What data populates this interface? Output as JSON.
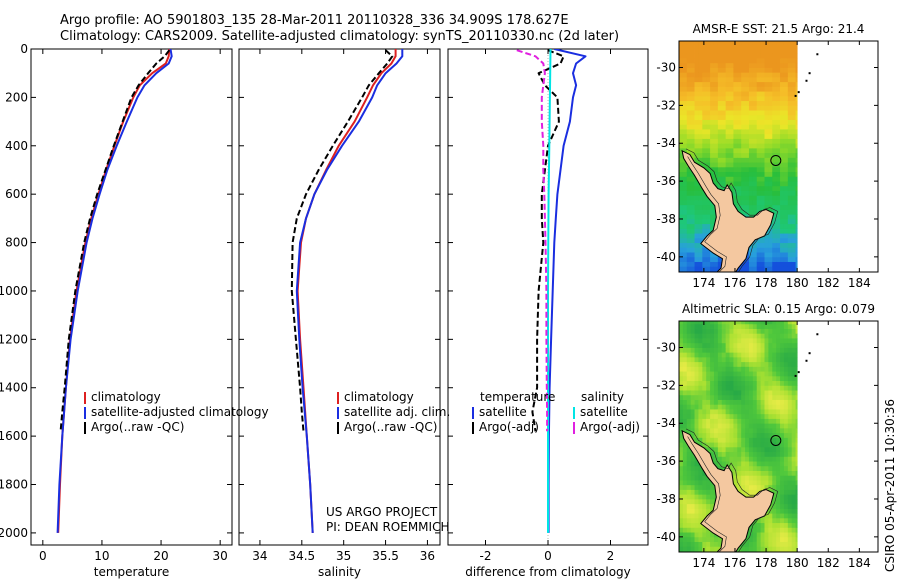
{
  "header": {
    "title_line1": "Argo profile: AO 5901803_135 28-Mar-2011 20110328_336 34.909S 178.627E",
    "title_line2": "Climatology: CARS2009. Satellite-adjusted climatology: synTS_20110330.nc (2d later)"
  },
  "credit": {
    "project": "US ARGO PROJECT",
    "pi": "PI: DEAN ROEMMICH",
    "stamp": "CSIRO 05-Apr-2011 10:30:36"
  },
  "colors": {
    "climatology": "#dd2020",
    "satellite": "#1a2ee0",
    "argo": "#000000",
    "sat_diff": "#00e5e5",
    "argo_adj": "#e020e0",
    "land": "#f4c8a0"
  },
  "chart_data": [
    {
      "type": "line",
      "id": "temperature",
      "xlabel": "temperature",
      "ylabel": "",
      "xlim": [
        -2,
        32
      ],
      "ylim": [
        0,
        2050
      ],
      "y_reversed": true,
      "xticks": [
        0,
        10,
        20,
        30
      ],
      "yticks": [
        0,
        200,
        400,
        600,
        800,
        1000,
        1200,
        1400,
        1600,
        1800,
        2000
      ],
      "legend": [
        "climatology",
        "satellite-adjusted climatology",
        "Argo(..raw -QC)"
      ],
      "series": [
        {
          "name": "climatology",
          "color": "#dd2020",
          "style": "solid",
          "depth": [
            0,
            30,
            60,
            100,
            150,
            200,
            300,
            400,
            500,
            600,
            700,
            800,
            1000,
            1200,
            1400,
            1600,
            1800,
            2000
          ],
          "values": [
            21.4,
            21.3,
            20.8,
            18.5,
            16.4,
            15.3,
            13.6,
            12.1,
            10.7,
            9.4,
            8.2,
            7.2,
            5.7,
            4.6,
            3.9,
            3.3,
            2.9,
            2.6
          ]
        },
        {
          "name": "satellite-adjusted climatology",
          "color": "#1a2ee0",
          "style": "solid",
          "depth": [
            0,
            30,
            60,
            100,
            150,
            200,
            300,
            400,
            500,
            600,
            700,
            800,
            1000,
            1200,
            1400,
            1600,
            1800,
            2000
          ],
          "values": [
            21.6,
            21.8,
            21.3,
            19.2,
            17.2,
            16.0,
            14.2,
            12.5,
            10.9,
            9.6,
            8.4,
            7.4,
            5.9,
            4.7,
            3.9,
            3.3,
            2.8,
            2.5
          ]
        },
        {
          "name": "Argo(..raw -QC)",
          "color": "#000000",
          "style": "dashed",
          "depth": [
            5,
            30,
            60,
            100,
            150,
            200,
            300,
            400,
            500,
            600,
            700,
            800,
            1000,
            1200,
            1400,
            1500,
            1580
          ],
          "values": [
            21.4,
            20.6,
            19.2,
            17.8,
            16.2,
            15.0,
            13.5,
            12.0,
            10.6,
            9.2,
            8.0,
            7.0,
            5.5,
            4.4,
            3.7,
            3.3,
            3.0
          ]
        }
      ]
    },
    {
      "type": "line",
      "id": "salinity",
      "xlabel": "salinity",
      "xlim": [
        33.75,
        36.15
      ],
      "ylim": [
        0,
        2050
      ],
      "y_reversed": true,
      "xticks": [
        34,
        34.5,
        35,
        35.5,
        36
      ],
      "legend": [
        "climatology",
        "satellite adj. clim.",
        "Argo(..raw -QC)"
      ],
      "series": [
        {
          "name": "climatology",
          "color": "#dd2020",
          "style": "solid",
          "depth": [
            0,
            30,
            60,
            100,
            150,
            200,
            300,
            400,
            500,
            600,
            700,
            800,
            1000,
            1200,
            1400,
            1600,
            1800,
            2000
          ],
          "values": [
            35.62,
            35.62,
            35.57,
            35.45,
            35.35,
            35.28,
            35.13,
            34.94,
            34.79,
            34.65,
            34.55,
            34.49,
            34.45,
            34.48,
            34.52,
            34.56,
            34.6,
            34.63
          ]
        },
        {
          "name": "satellite adj. clim.",
          "color": "#1a2ee0",
          "style": "solid",
          "depth": [
            0,
            30,
            60,
            100,
            150,
            200,
            300,
            400,
            500,
            600,
            700,
            800,
            1000,
            1200,
            1400,
            1600,
            1800,
            2000
          ],
          "values": [
            35.7,
            35.7,
            35.63,
            35.5,
            35.4,
            35.34,
            35.18,
            34.98,
            34.8,
            34.65,
            34.55,
            34.48,
            34.44,
            34.47,
            34.51,
            34.56,
            34.6,
            34.63
          ]
        },
        {
          "name": "Argo(..raw -QC)",
          "color": "#000000",
          "style": "dashed",
          "depth": [
            5,
            30,
            60,
            100,
            150,
            200,
            300,
            400,
            500,
            600,
            700,
            800,
            1000,
            1200,
            1400,
            1500,
            1580
          ],
          "values": [
            35.5,
            35.58,
            35.52,
            35.42,
            35.3,
            35.22,
            35.05,
            34.87,
            34.7,
            34.55,
            34.44,
            34.39,
            34.38,
            34.43,
            34.48,
            34.5,
            34.52
          ]
        }
      ]
    },
    {
      "type": "line",
      "id": "difference",
      "xlabel": "difference from climatology",
      "xlim": [
        -3.2,
        3.2
      ],
      "ylim": [
        0,
        2050
      ],
      "y_reversed": true,
      "xticks": [
        -2,
        0,
        2
      ],
      "legend_groups": {
        "temperature": {
          "title": "temperature",
          "entries": [
            "satellite",
            "Argo(-adj)"
          ]
        },
        "salinity": {
          "title": "salinity",
          "entries": [
            "satellite",
            "Argo(-adj)"
          ]
        }
      },
      "series": [
        {
          "name": "temperature satellite",
          "color": "#1a2ee0",
          "style": "solid",
          "depth": [
            0,
            30,
            60,
            100,
            150,
            200,
            300,
            400,
            500,
            600,
            700,
            800,
            1000,
            1200,
            1400,
            1600,
            1800,
            2000
          ],
          "values": [
            0.2,
            1.2,
            0.9,
            0.8,
            0.9,
            0.8,
            0.7,
            0.5,
            0.4,
            0.3,
            0.25,
            0.2,
            0.15,
            0.1,
            0.05,
            0.03,
            0.02,
            0.02
          ]
        },
        {
          "name": "temperature Argo(-adj)",
          "color": "#000000",
          "style": "dashed",
          "depth": [
            5,
            30,
            60,
            100,
            150,
            200,
            300,
            400,
            500,
            600,
            700,
            800,
            1000,
            1200,
            1400,
            1500,
            1580
          ],
          "values": [
            0.0,
            0.5,
            0.4,
            -0.3,
            -0.1,
            0.3,
            0.35,
            0.0,
            -0.1,
            -0.2,
            -0.2,
            -0.15,
            -0.3,
            -0.35,
            -0.35,
            -0.5,
            -0.4
          ]
        },
        {
          "name": "salinity satellite",
          "color": "#00e5e5",
          "style": "solid",
          "depth": [
            0,
            100,
            200,
            400,
            600,
            800,
            1000,
            1200,
            1400,
            1600,
            1800,
            2000
          ],
          "values": [
            0.08,
            0.07,
            0.06,
            0.04,
            0.02,
            0.01,
            0.0,
            0.0,
            0.0,
            0.0,
            0.0,
            0.0
          ]
        },
        {
          "name": "salinity Argo(-adj)",
          "color": "#e020e0",
          "style": "dashed",
          "depth": [
            5,
            30,
            60,
            100,
            150,
            200,
            300,
            400,
            500,
            600,
            700,
            800,
            1000,
            1200,
            1400,
            1500,
            1580
          ],
          "values": [
            -1.0,
            -0.4,
            -0.15,
            -0.1,
            -0.15,
            -0.2,
            -0.2,
            -0.15,
            -0.15,
            -0.12,
            -0.1,
            -0.08,
            -0.05,
            -0.05,
            -0.04,
            -0.03,
            -0.03
          ]
        }
      ]
    },
    {
      "type": "heatmap",
      "id": "sst-map",
      "title": "AMSR-E SST: 21.5 Argo: 21.4",
      "xticks": [
        "174",
        "176",
        "178",
        "180",
        "182",
        "184"
      ],
      "yticks": [
        "-30",
        "-32",
        "-34",
        "-36",
        "-38",
        "-40"
      ],
      "xlim": [
        172.4,
        185.2
      ],
      "ylim": [
        -40.8,
        -28.6
      ],
      "data_lon_max": 180.0,
      "marker": {
        "lon": 178.627,
        "lat": -34.909
      }
    },
    {
      "type": "heatmap",
      "id": "sla-map",
      "title": "Altimetric SLA: 0.15 Argo: 0.079",
      "xticks": [
        "174",
        "176",
        "178",
        "180",
        "182",
        "184"
      ],
      "yticks": [
        "-30",
        "-32",
        "-34",
        "-36",
        "-38",
        "-40"
      ],
      "xlim": [
        172.4,
        185.2
      ],
      "ylim": [
        -40.8,
        -28.6
      ],
      "data_lon_max": 180.0,
      "marker": {
        "lon": 178.627,
        "lat": -34.909
      }
    }
  ]
}
